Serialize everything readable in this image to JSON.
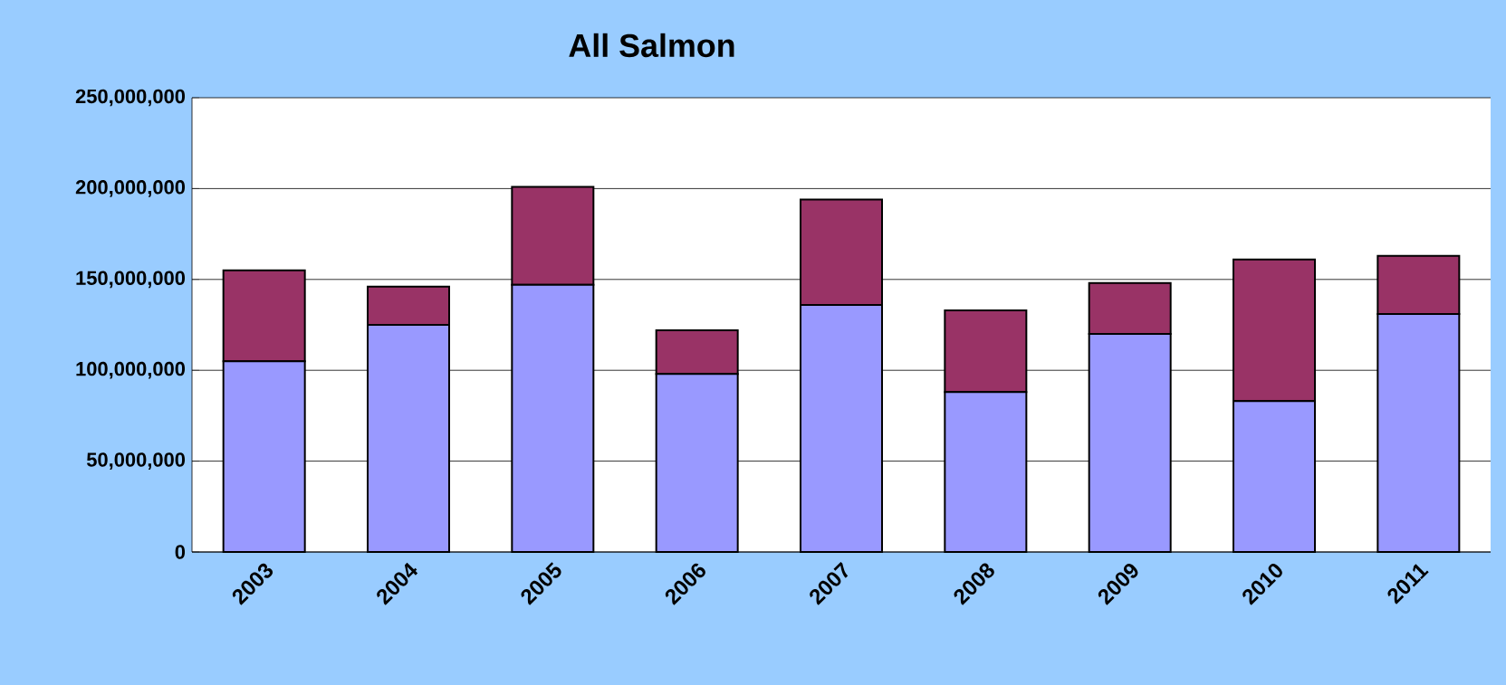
{
  "chart_data": {
    "type": "bar",
    "title": "All Salmon",
    "stacked": true,
    "grid": "y",
    "categories": [
      "2003",
      "2004",
      "2005",
      "2006",
      "2007",
      "2008",
      "2009",
      "2010",
      "2011"
    ],
    "series": [
      {
        "color": "#9999ff",
        "values": [
          105000000,
          125000000,
          147000000,
          98000000,
          136000000,
          88000000,
          120000000,
          83000000,
          131000000
        ]
      },
      {
        "color": "#993366",
        "values": [
          50000000,
          21000000,
          54000000,
          24000000,
          58000000,
          45000000,
          28000000,
          78000000,
          32000000
        ]
      }
    ],
    "ylim": [
      0,
      250000000
    ],
    "yticks": [
      {
        "value": 0,
        "label": "0"
      },
      {
        "value": 50000000,
        "label": "50,000,000"
      },
      {
        "value": 100000000,
        "label": "100,000,000"
      },
      {
        "value": 150000000,
        "label": "150,000,000"
      },
      {
        "value": 200000000,
        "label": "200,000,000"
      },
      {
        "value": 250000000,
        "label": "250,000,000"
      }
    ]
  }
}
